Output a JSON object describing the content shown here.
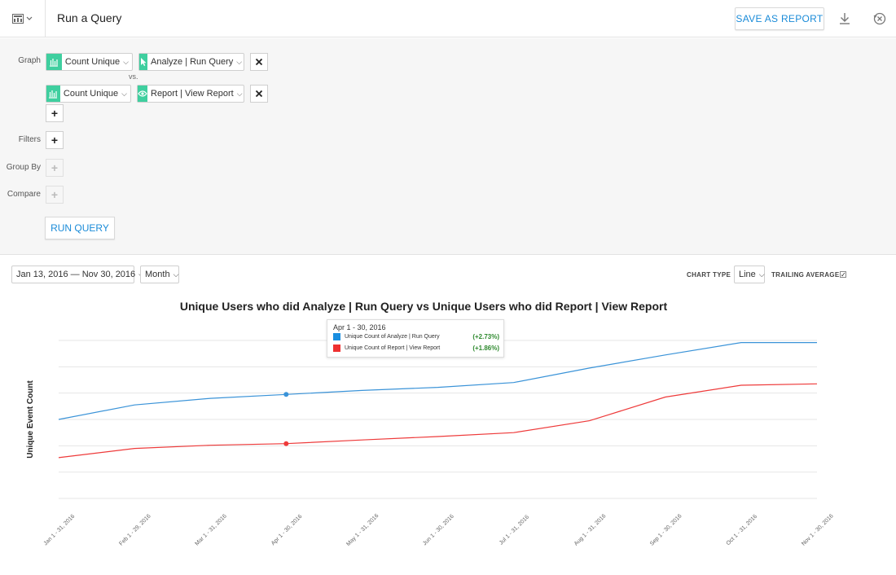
{
  "header": {
    "title": "Run a Query",
    "save_label": "SAVE AS REPORT",
    "app_icon": "chart-grid-icon",
    "download_icon": "download-icon",
    "reset_icon": "close-circle-icon"
  },
  "builder": {
    "graph_label": "Graph",
    "vs_label": "vs.",
    "filters_label": "Filters",
    "group_by_label": "Group By",
    "compare_label": "Compare",
    "run_label": "RUN QUERY",
    "series": [
      {
        "measure": "Count Unique",
        "event": "Analyze | Run Query",
        "event_icon": "cursor-icon"
      },
      {
        "measure": "Count Unique",
        "event": "Report | View Report",
        "event_icon": "eye-icon"
      }
    ]
  },
  "controls": {
    "date_range": "Jan 13, 2016 — Nov 30, 2016",
    "interval": "Month",
    "chart_type_label": "CHART TYPE",
    "chart_type": "Line",
    "trailing_average_label": "TRAILING AVERAGE",
    "trailing_average_checked": true
  },
  "tooltip": {
    "heading": "Apr 1 - 30, 2016",
    "rows": [
      {
        "name": "Unique Count of Analyze | Run Query",
        "change": "(+2.73%)",
        "color": "#1a8ee0"
      },
      {
        "name": "Unique Count of Report | View Report",
        "change": "(+1.86%)",
        "color": "#ee3030"
      }
    ]
  },
  "colors": {
    "accent": "#1a8bd8",
    "brand_green": "#3fcf9f",
    "series_blue": "#3a93d8",
    "series_red": "#ee3a3a"
  },
  "chart_data": {
    "type": "line",
    "title": "Unique Users who did Analyze | Run Query vs Unique Users who did Report | View Report",
    "ylabel": "Unique Event Count",
    "xlabel": "",
    "categories": [
      "Jan 1 - 31, 2016",
      "Feb 1 - 29, 2016",
      "Mar 1 - 31, 2016",
      "Apr 1 - 30, 2016",
      "May 1 - 31, 2016",
      "Jun 1 - 30, 2016",
      "Jul 1 - 31, 2016",
      "Aug 1 - 31, 2016",
      "Sep 1 - 30, 2016",
      "Oct 1 - 31, 2016",
      "Nov 1 - 30, 2016"
    ],
    "series": [
      {
        "name": "Unique Count of Analyze | Run Query",
        "color": "#3a93d8",
        "values": [
          3.0,
          3.55,
          3.8,
          3.95,
          4.1,
          4.22,
          4.4,
          4.95,
          5.45,
          5.92,
          5.92
        ]
      },
      {
        "name": "Unique Count of Report | View Report",
        "color": "#ee3a3a",
        "values": [
          1.55,
          1.9,
          2.02,
          2.08,
          2.22,
          2.35,
          2.5,
          2.95,
          3.85,
          4.3,
          4.35
        ]
      }
    ],
    "ylim": [
      0,
      6
    ],
    "y_ticks_labeled": false,
    "highlighted_index": 3,
    "grid": true,
    "legend": "none"
  }
}
